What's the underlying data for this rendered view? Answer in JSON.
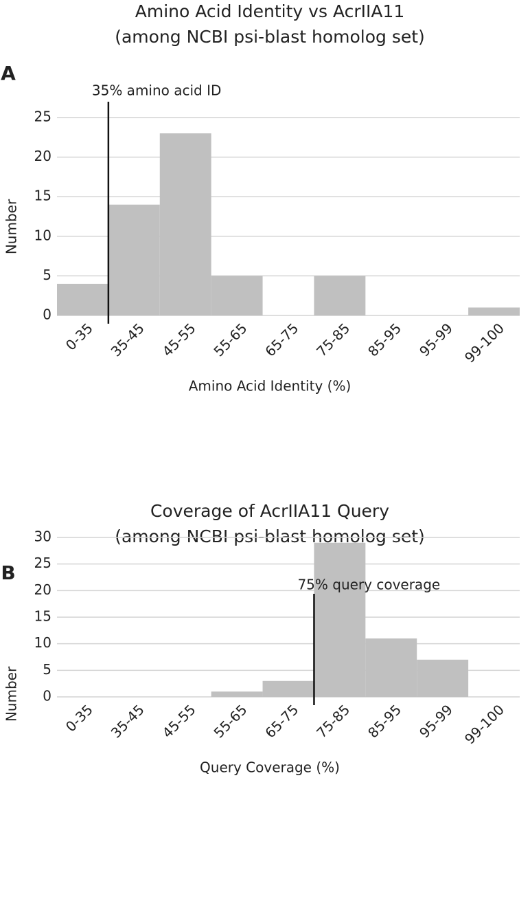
{
  "chart_data": [
    {
      "type": "bar",
      "panel": "A",
      "title": [
        "Amino Acid Identity vs AcrIIA11",
        "(among NCBI psi-blast homolog set)"
      ],
      "annotation": "35% amino acid ID",
      "xlabel": "Amino Acid Identity (%)",
      "ylabel": "Number",
      "categories": [
        "0-35",
        "35-45",
        "45-55",
        "55-65",
        "65-75",
        "75-85",
        "85-95",
        "95-99",
        "99-100"
      ],
      "values": [
        4,
        14,
        23,
        5,
        0,
        5,
        0,
        0,
        1
      ],
      "color": "#c0c0c0",
      "ylim": [
        0,
        25
      ],
      "yticks": [
        0,
        5,
        10,
        15,
        20,
        25
      ],
      "grid": true
    },
    {
      "type": "bar",
      "panel": "B",
      "title": [
        "Coverage of AcrIIA11 Query",
        "(among NCBI psi-blast homolog set)"
      ],
      "annotation": "75% query coverage",
      "xlabel": "Query Coverage (%)",
      "ylabel": "Number",
      "categories": [
        "0-35",
        "35-45",
        "45-55",
        "55-65",
        "65-75",
        "75-85",
        "85-95",
        "95-99",
        "99-100"
      ],
      "values": [
        0,
        0,
        0,
        1,
        3,
        29,
        11,
        7,
        0
      ],
      "color": "#c0c0c0",
      "ylim": [
        0,
        30
      ],
      "yticks": [
        0,
        5,
        10,
        15,
        20,
        25,
        30
      ],
      "grid": true
    }
  ]
}
